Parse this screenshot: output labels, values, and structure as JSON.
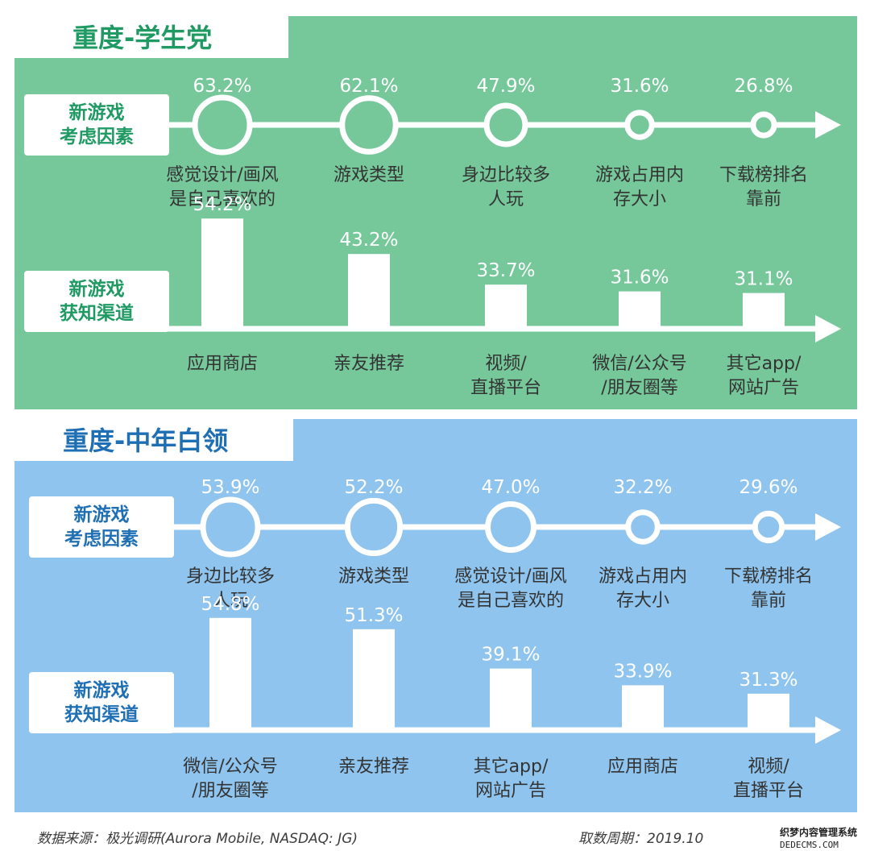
{
  "chart_data": [
    {
      "type": "bubble-timeline-and-bar",
      "title": "重度-学生党",
      "theme_color": "#76c89b",
      "title_color": "#1f9a63",
      "factors": {
        "label": [
          "新游戏",
          "考虑因素"
        ],
        "items": [
          {
            "value": 63.2,
            "value_label": "63.2%",
            "label": [
              "感觉设计/画风",
              "是自己喜欢的"
            ]
          },
          {
            "value": 62.1,
            "value_label": "62.1%",
            "label": [
              "游戏类型"
            ]
          },
          {
            "value": 47.9,
            "value_label": "47.9%",
            "label": [
              "身边比较多",
              "人玩"
            ]
          },
          {
            "value": 31.6,
            "value_label": "31.6%",
            "label": [
              "游戏占用内",
              "存大小"
            ]
          },
          {
            "value": 26.8,
            "value_label": "26.8%",
            "label": [
              "下载榜排名",
              "靠前"
            ]
          }
        ]
      },
      "channels": {
        "label": [
          "新游戏",
          "获知渠道"
        ],
        "items": [
          {
            "value": 54.2,
            "value_label": "54.2%",
            "label": [
              "应用商店"
            ]
          },
          {
            "value": 43.2,
            "value_label": "43.2%",
            "label": [
              "亲友推荐"
            ]
          },
          {
            "value": 33.7,
            "value_label": "33.7%",
            "label": [
              "视频/",
              "直播平台"
            ]
          },
          {
            "value": 31.6,
            "value_label": "31.6%",
            "label": [
              "微信/公众号",
              "/朋友圈等"
            ]
          },
          {
            "value": 31.1,
            "value_label": "31.1%",
            "label": [
              "其它app/",
              "网站广告"
            ]
          }
        ]
      }
    },
    {
      "type": "bubble-timeline-and-bar",
      "title": "重度-中年白领",
      "theme_color": "#8ec4ee",
      "title_color": "#1f6fb4",
      "factors": {
        "label": [
          "新游戏",
          "考虑因素"
        ],
        "items": [
          {
            "value": 53.9,
            "value_label": "53.9%",
            "label": [
              "身边比较多",
              "人玩"
            ]
          },
          {
            "value": 52.2,
            "value_label": "52.2%",
            "label": [
              "游戏类型"
            ]
          },
          {
            "value": 47.0,
            "value_label": "47.0%",
            "label": [
              "感觉设计/画风",
              "是自己喜欢的"
            ]
          },
          {
            "value": 32.2,
            "value_label": "32.2%",
            "label": [
              "游戏占用内",
              "存大小"
            ]
          },
          {
            "value": 29.6,
            "value_label": "29.6%",
            "label": [
              "下载榜排名",
              "靠前"
            ]
          }
        ]
      },
      "channels": {
        "label": [
          "新游戏",
          "获知渠道"
        ],
        "items": [
          {
            "value": 54.8,
            "value_label": "54.8%",
            "label": [
              "微信/公众号",
              "/朋友圈等"
            ]
          },
          {
            "value": 51.3,
            "value_label": "51.3%",
            "label": [
              "亲友推荐"
            ]
          },
          {
            "value": 39.1,
            "value_label": "39.1%",
            "label": [
              "其它app/",
              "网站广告"
            ]
          },
          {
            "value": 33.9,
            "value_label": "33.9%",
            "label": [
              "应用商店"
            ]
          },
          {
            "value": 31.3,
            "value_label": "31.3%",
            "label": [
              "视频/",
              "直播平台"
            ]
          }
        ]
      }
    }
  ],
  "footer": {
    "source": "数据来源：极光调研(Aurora Mobile, NASDAQ: JG)",
    "period": "取数周期：2019.10"
  },
  "watermark": {
    "cn": "织梦内容管理系统",
    "en": "DEDECMS.COM"
  }
}
